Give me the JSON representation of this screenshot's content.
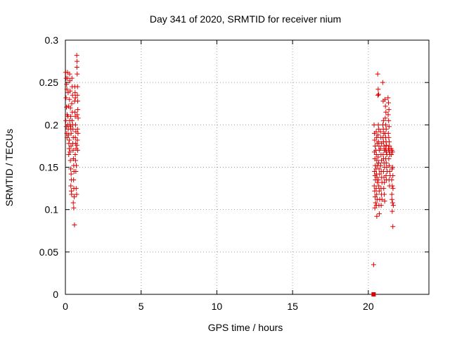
{
  "chart_data": {
    "type": "scatter",
    "title": "Day 341 of 2020, SRMTID for receiver nium",
    "xlabel": "GPS time / hours",
    "ylabel": "SRMTID / TECUs",
    "xlim": [
      0,
      24
    ],
    "ylim": [
      0,
      0.3
    ],
    "xticks": [
      0,
      5,
      10,
      15,
      20
    ],
    "yticks": [
      0,
      0.05,
      0.1,
      0.15,
      0.2,
      0.25,
      0.3
    ],
    "ytick_labels": [
      "0",
      "0.05",
      "0.1",
      "0.15",
      "0.2",
      "0.25",
      "0.3"
    ],
    "grid": true,
    "marker": "+",
    "color": "#e00000",
    "series": [
      {
        "name": "SRMTID",
        "points": [
          [
            0.02,
            0.262
          ],
          [
            0.05,
            0.255
          ],
          [
            0.08,
            0.248
          ],
          [
            0.1,
            0.242
          ],
          [
            0.04,
            0.232
          ],
          [
            0.07,
            0.221
          ],
          [
            0.12,
            0.212
          ],
          [
            0.03,
            0.205
          ],
          [
            0.06,
            0.198
          ],
          [
            0.09,
            0.19
          ],
          [
            0.11,
            0.185
          ],
          [
            0.14,
            0.262
          ],
          [
            0.15,
            0.255
          ],
          [
            0.18,
            0.238
          ],
          [
            0.2,
            0.222
          ],
          [
            0.17,
            0.21
          ],
          [
            0.16,
            0.2
          ],
          [
            0.19,
            0.195
          ],
          [
            0.21,
            0.188
          ],
          [
            0.23,
            0.178
          ],
          [
            0.25,
            0.172
          ],
          [
            0.22,
            0.165
          ],
          [
            0.28,
            0.26
          ],
          [
            0.3,
            0.252
          ],
          [
            0.32,
            0.24
          ],
          [
            0.27,
            0.23
          ],
          [
            0.33,
            0.22
          ],
          [
            0.35,
            0.21
          ],
          [
            0.29,
            0.205
          ],
          [
            0.31,
            0.2
          ],
          [
            0.34,
            0.198
          ],
          [
            0.36,
            0.195
          ],
          [
            0.38,
            0.19
          ],
          [
            0.26,
            0.182
          ],
          [
            0.37,
            0.175
          ],
          [
            0.3,
            0.168
          ],
          [
            0.33,
            0.158
          ],
          [
            0.35,
            0.148
          ],
          [
            0.38,
            0.142
          ],
          [
            0.4,
            0.135
          ],
          [
            0.36,
            0.128
          ],
          [
            0.39,
            0.122
          ],
          [
            0.41,
            0.118
          ],
          [
            0.43,
            0.255
          ],
          [
            0.45,
            0.245
          ],
          [
            0.47,
            0.235
          ],
          [
            0.42,
            0.225
          ],
          [
            0.46,
            0.215
          ],
          [
            0.44,
            0.205
          ],
          [
            0.48,
            0.2
          ],
          [
            0.5,
            0.195
          ],
          [
            0.52,
            0.185
          ],
          [
            0.49,
            0.178
          ],
          [
            0.51,
            0.17
          ],
          [
            0.53,
            0.16
          ],
          [
            0.55,
            0.152
          ],
          [
            0.57,
            0.145
          ],
          [
            0.54,
            0.135
          ],
          [
            0.56,
            0.125
          ],
          [
            0.58,
            0.115
          ],
          [
            0.52,
            0.108
          ],
          [
            0.55,
            0.102
          ],
          [
            0.6,
            0.082
          ],
          [
            0.62,
            0.245
          ],
          [
            0.64,
            0.238
          ],
          [
            0.66,
            0.232
          ],
          [
            0.61,
            0.228
          ],
          [
            0.63,
            0.215
          ],
          [
            0.65,
            0.21
          ],
          [
            0.67,
            0.2
          ],
          [
            0.69,
            0.192
          ],
          [
            0.66,
            0.185
          ],
          [
            0.68,
            0.178
          ],
          [
            0.7,
            0.172
          ],
          [
            0.65,
            0.165
          ],
          [
            0.67,
            0.158
          ],
          [
            0.72,
            0.152
          ],
          [
            0.69,
            0.145
          ],
          [
            0.71,
            0.125
          ],
          [
            0.74,
            0.118
          ],
          [
            0.75,
            0.282
          ],
          [
            0.77,
            0.275
          ],
          [
            0.76,
            0.268
          ],
          [
            0.78,
            0.26
          ],
          [
            0.8,
            0.245
          ],
          [
            0.79,
            0.235
          ],
          [
            0.81,
            0.228
          ],
          [
            0.82,
            0.218
          ],
          [
            0.78,
            0.212
          ],
          [
            0.84,
            0.208
          ],
          [
            0.8,
            0.195
          ],
          [
            0.83,
            0.19
          ],
          [
            0.79,
            0.182
          ],
          [
            0.76,
            0.176
          ],
          [
            0.81,
            0.17
          ],
          [
            20.35,
            0.035
          ],
          [
            20.38,
            0.2
          ],
          [
            20.4,
            0.19
          ],
          [
            20.42,
            0.182
          ],
          [
            20.45,
            0.175
          ],
          [
            20.4,
            0.168
          ],
          [
            20.43,
            0.16
          ],
          [
            20.46,
            0.152
          ],
          [
            20.41,
            0.145
          ],
          [
            20.44,
            0.14
          ],
          [
            20.47,
            0.135
          ],
          [
            20.39,
            0.128
          ],
          [
            20.42,
            0.122
          ],
          [
            20.45,
            0.115
          ],
          [
            20.48,
            0.108
          ],
          [
            20.43,
            0.102
          ],
          [
            20.52,
            0.192
          ],
          [
            20.55,
            0.185
          ],
          [
            20.58,
            0.178
          ],
          [
            20.5,
            0.17
          ],
          [
            20.53,
            0.165
          ],
          [
            20.56,
            0.158
          ],
          [
            20.59,
            0.152
          ],
          [
            20.51,
            0.148
          ],
          [
            20.54,
            0.142
          ],
          [
            20.57,
            0.138
          ],
          [
            20.6,
            0.132
          ],
          [
            20.52,
            0.125
          ],
          [
            20.55,
            0.118
          ],
          [
            20.58,
            0.112
          ],
          [
            20.53,
            0.105
          ],
          [
            20.56,
            0.092
          ],
          [
            20.62,
            0.26
          ],
          [
            20.65,
            0.242
          ],
          [
            20.68,
            0.236
          ],
          [
            20.63,
            0.235
          ],
          [
            20.66,
            0.2
          ],
          [
            20.69,
            0.195
          ],
          [
            20.64,
            0.188
          ],
          [
            20.67,
            0.18
          ],
          [
            20.7,
            0.175
          ],
          [
            20.72,
            0.17
          ],
          [
            20.65,
            0.162
          ],
          [
            20.68,
            0.155
          ],
          [
            20.71,
            0.148
          ],
          [
            20.74,
            0.142
          ],
          [
            20.66,
            0.135
          ],
          [
            20.69,
            0.128
          ],
          [
            20.72,
            0.122
          ],
          [
            20.75,
            0.112
          ],
          [
            20.7,
            0.105
          ],
          [
            20.73,
            0.095
          ],
          [
            20.8,
            0.192
          ],
          [
            20.83,
            0.185
          ],
          [
            20.86,
            0.178
          ],
          [
            20.81,
            0.172
          ],
          [
            20.84,
            0.165
          ],
          [
            20.87,
            0.158
          ],
          [
            20.82,
            0.152
          ],
          [
            20.85,
            0.145
          ],
          [
            20.88,
            0.138
          ],
          [
            20.9,
            0.132
          ],
          [
            20.84,
            0.125
          ],
          [
            20.87,
            0.118
          ],
          [
            20.9,
            0.112
          ],
          [
            20.85,
            0.105
          ],
          [
            20.95,
            0.25
          ],
          [
            20.98,
            0.228
          ],
          [
            21.0,
            0.205
          ],
          [
            20.96,
            0.2
          ],
          [
            20.99,
            0.195
          ],
          [
            21.02,
            0.19
          ],
          [
            20.97,
            0.185
          ],
          [
            21.0,
            0.18
          ],
          [
            21.03,
            0.175
          ],
          [
            21.05,
            0.17
          ],
          [
            20.98,
            0.165
          ],
          [
            21.01,
            0.16
          ],
          [
            21.04,
            0.155
          ],
          [
            21.07,
            0.15
          ],
          [
            21.0,
            0.145
          ],
          [
            21.03,
            0.138
          ],
          [
            21.06,
            0.132
          ],
          [
            21.02,
            0.125
          ],
          [
            21.05,
            0.118
          ],
          [
            21.08,
            0.11
          ],
          [
            21.1,
            0.23
          ],
          [
            21.13,
            0.222
          ],
          [
            21.16,
            0.215
          ],
          [
            21.12,
            0.208
          ],
          [
            21.15,
            0.2
          ],
          [
            21.18,
            0.195
          ],
          [
            21.11,
            0.19
          ],
          [
            21.14,
            0.185
          ],
          [
            21.17,
            0.18
          ],
          [
            21.2,
            0.176
          ],
          [
            21.13,
            0.172
          ],
          [
            21.16,
            0.17
          ],
          [
            21.19,
            0.168
          ],
          [
            21.22,
            0.165
          ],
          [
            21.15,
            0.16
          ],
          [
            21.18,
            0.155
          ],
          [
            21.21,
            0.15
          ],
          [
            21.24,
            0.145
          ],
          [
            21.17,
            0.14
          ],
          [
            21.2,
            0.135
          ],
          [
            21.3,
            0.232
          ],
          [
            21.33,
            0.226
          ],
          [
            21.36,
            0.218
          ],
          [
            21.31,
            0.212
          ],
          [
            21.34,
            0.205
          ],
          [
            21.37,
            0.198
          ],
          [
            21.32,
            0.19
          ],
          [
            21.35,
            0.185
          ],
          [
            21.38,
            0.18
          ],
          [
            21.4,
            0.175
          ],
          [
            21.33,
            0.172
          ],
          [
            21.36,
            0.17
          ],
          [
            21.39,
            0.168
          ],
          [
            21.42,
            0.165
          ],
          [
            21.35,
            0.16
          ],
          [
            21.38,
            0.152
          ],
          [
            21.41,
            0.145
          ],
          [
            21.44,
            0.14
          ],
          [
            21.37,
            0.135
          ],
          [
            21.4,
            0.128
          ],
          [
            21.5,
            0.172
          ],
          [
            21.55,
            0.17
          ],
          [
            21.6,
            0.168
          ],
          [
            21.52,
            0.165
          ],
          [
            21.57,
            0.148
          ],
          [
            21.62,
            0.14
          ],
          [
            21.54,
            0.135
          ],
          [
            21.58,
            0.128
          ],
          [
            21.63,
            0.125
          ],
          [
            21.56,
            0.112
          ],
          [
            21.6,
            0.108
          ],
          [
            21.65,
            0.105
          ],
          [
            21.58,
            0.098
          ],
          [
            21.62,
            0.08
          ],
          [
            21.55,
            0.118
          ],
          [
            21.6,
            0.15
          ]
        ]
      }
    ],
    "extra_marks": [
      {
        "name": "zero-marker",
        "x": 20.35,
        "y": 0.0,
        "shape": "square"
      }
    ]
  }
}
